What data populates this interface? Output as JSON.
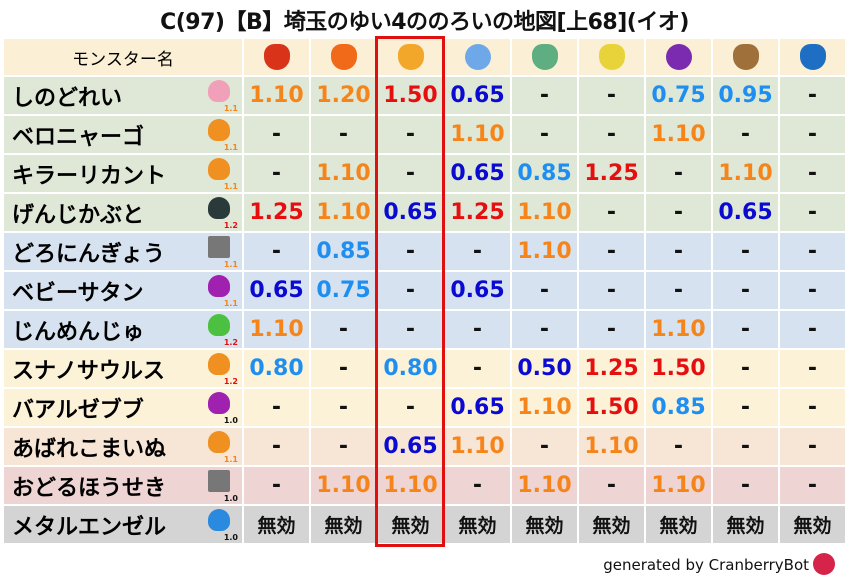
{
  "title": "C(97)【B】埼玉のゆい4ののろいの地図[上68](イオ)",
  "header": {
    "name_label": "モンスター名",
    "elements": [
      {
        "icon": "mera-fireball-icon",
        "color": "#d9331a"
      },
      {
        "icon": "gira-flame-icon",
        "color": "#f06a1a"
      },
      {
        "icon": "io-explosion-icon",
        "color": "#f3a72a"
      },
      {
        "icon": "hyado-ice-icon",
        "color": "#6ea8e8"
      },
      {
        "icon": "bagi-tornado-icon",
        "color": "#5fae82"
      },
      {
        "icon": "dein-lightning-icon",
        "color": "#e8d43a"
      },
      {
        "icon": "doruma-dark-icon",
        "color": "#7b2bb0"
      },
      {
        "icon": "jibaria-earth-icon",
        "color": "#a0703a"
      },
      {
        "icon": "water-wave-icon",
        "color": "#1e6fc4"
      }
    ]
  },
  "value_colors": {
    "1.10": "#f5851a",
    "1.20": "#f5851a",
    "1.50": "#e60f0f",
    "1.25": "#e60f0f",
    "0.65": "#0a0ad0",
    "0.50": "#0a0ad0",
    "0.75": "#1e8ef0",
    "0.85": "#1e8ef0",
    "0.95": "#1e8ef0",
    "0.80": "#1e8ef0",
    "-": "#111111",
    "無効": "#111111"
  },
  "highlight_column": 2,
  "rows": [
    {
      "name": "しのどれい",
      "icon": "skull-icon",
      "ver": "1.1",
      "ver_color": "#f5851a",
      "bg": "g",
      "values": [
        "1.10",
        "1.20",
        "1.50",
        "0.65",
        "-",
        "-",
        "0.75",
        "0.95",
        "-"
      ]
    },
    {
      "name": "ベロニャーゴ",
      "icon": "paw-icon",
      "ver": "1.1",
      "ver_color": "#f5851a",
      "bg": "g",
      "values": [
        "-",
        "-",
        "-",
        "1.10",
        "-",
        "-",
        "1.10",
        "-",
        "-"
      ]
    },
    {
      "name": "キラーリカント",
      "icon": "paw-icon",
      "ver": "1.1",
      "ver_color": "#f5851a",
      "bg": "g",
      "values": [
        "-",
        "1.10",
        "-",
        "0.65",
        "0.85",
        "1.25",
        "-",
        "1.10",
        "-"
      ]
    },
    {
      "name": "げんじかぶと",
      "icon": "insect-icon",
      "ver": "1.2",
      "ver_color": "#e60f0f",
      "bg": "g",
      "values": [
        "1.25",
        "1.10",
        "0.65",
        "1.25",
        "1.10",
        "-",
        "-",
        "0.65",
        "-"
      ]
    },
    {
      "name": "どろにんぎょう",
      "icon": "brick-icon",
      "ver": "1.1",
      "ver_color": "#f5851a",
      "bg": "b",
      "values": [
        "-",
        "0.85",
        "-",
        "-",
        "1.10",
        "-",
        "-",
        "-",
        "-"
      ]
    },
    {
      "name": "ベビーサタン",
      "icon": "trident-icon",
      "ver": "1.1",
      "ver_color": "#f5851a",
      "bg": "b",
      "values": [
        "0.65",
        "0.75",
        "-",
        "0.65",
        "-",
        "-",
        "-",
        "-",
        "-"
      ]
    },
    {
      "name": "じんめんじゅ",
      "icon": "leaf-icon",
      "ver": "1.2",
      "ver_color": "#e60f0f",
      "bg": "b",
      "values": [
        "1.10",
        "-",
        "-",
        "-",
        "-",
        "-",
        "1.10",
        "-",
        "-"
      ]
    },
    {
      "name": "スナノサウルス",
      "icon": "paw-icon",
      "ver": "1.2",
      "ver_color": "#e60f0f",
      "bg": "y",
      "values": [
        "0.80",
        "-",
        "0.80",
        "-",
        "0.50",
        "1.25",
        "1.50",
        "-",
        "-"
      ]
    },
    {
      "name": "バアルゼブブ",
      "icon": "trident-icon",
      "ver": "1.0",
      "ver_color": "#111111",
      "bg": "y",
      "values": [
        "-",
        "-",
        "-",
        "0.65",
        "1.10",
        "1.50",
        "0.85",
        "-",
        "-"
      ]
    },
    {
      "name": "あばれこまいぬ",
      "icon": "paw-icon",
      "ver": "1.1",
      "ver_color": "#f5851a",
      "bg": "p",
      "values": [
        "-",
        "-",
        "0.65",
        "1.10",
        "-",
        "1.10",
        "-",
        "-",
        "-"
      ]
    },
    {
      "name": "おどるほうせき",
      "icon": "brick-icon",
      "ver": "1.0",
      "ver_color": "#111111",
      "bg": "r",
      "values": [
        "-",
        "1.10",
        "1.10",
        "-",
        "1.10",
        "-",
        "1.10",
        "-",
        "-"
      ]
    },
    {
      "name": "メタルエンゼル",
      "icon": "slime-icon",
      "ver": "1.0",
      "ver_color": "#111111",
      "bg": "k",
      "values": [
        "無効",
        "無効",
        "無効",
        "無効",
        "無効",
        "無効",
        "無効",
        "無効",
        "無効"
      ]
    }
  ],
  "footer": {
    "text": "generated by CranberryBot",
    "icon": "cranberrybot-icon"
  }
}
